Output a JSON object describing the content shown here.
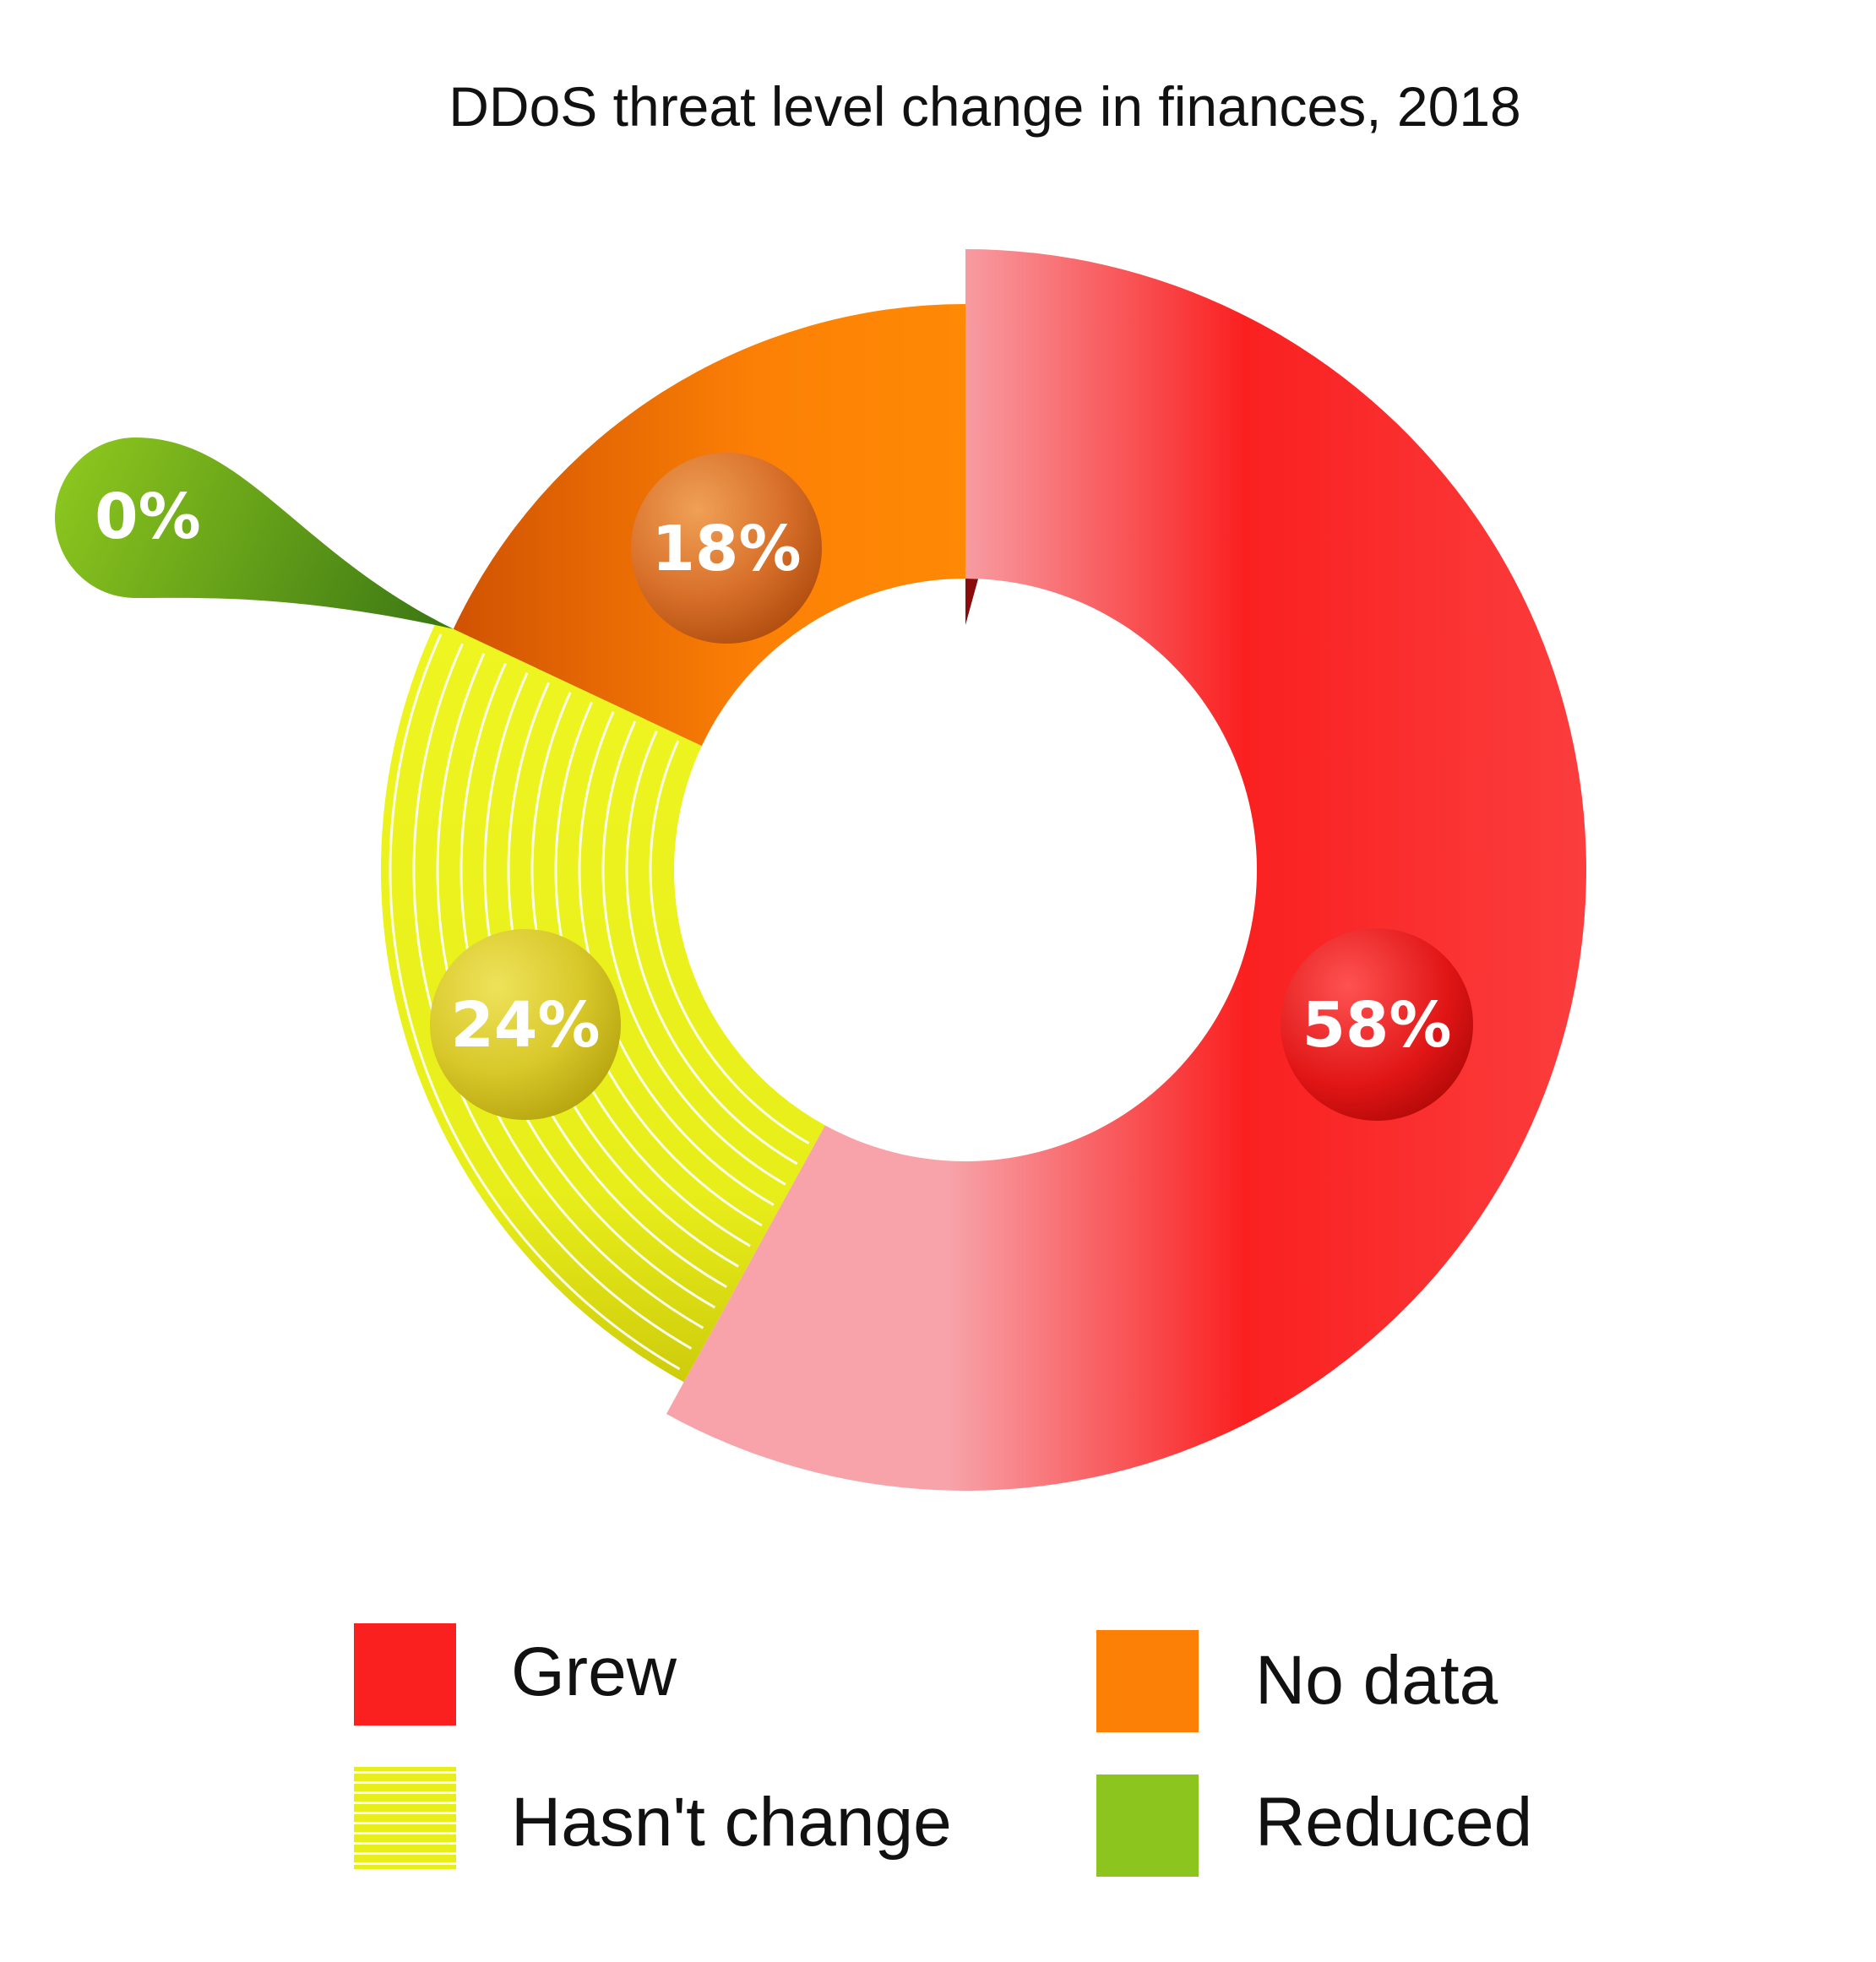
{
  "chart_data": {
    "type": "pie",
    "style": "donut",
    "title": "DDoS threat level change in finances, 2018",
    "slices": [
      {
        "key": "grew",
        "label": "Grew",
        "value": 58,
        "value_label": "58%",
        "color": "#FA2020",
        "pattern": "solid"
      },
      {
        "key": "no_data",
        "label": "No data",
        "value": 18,
        "value_label": "18%",
        "color": "#FC8005",
        "pattern": "solid"
      },
      {
        "key": "hasnt_change",
        "label": "Hasn't change",
        "value": 24,
        "value_label": "24%",
        "color": "#ECF21D",
        "pattern": "stripes"
      },
      {
        "key": "reduced",
        "label": "Reduced",
        "value": 0,
        "value_label": "0%",
        "color": "#8BC51E",
        "pattern": "solid"
      }
    ],
    "legend_position": "bottom",
    "legend_order": [
      "grew",
      "no_data",
      "hasnt_change",
      "reduced"
    ]
  }
}
